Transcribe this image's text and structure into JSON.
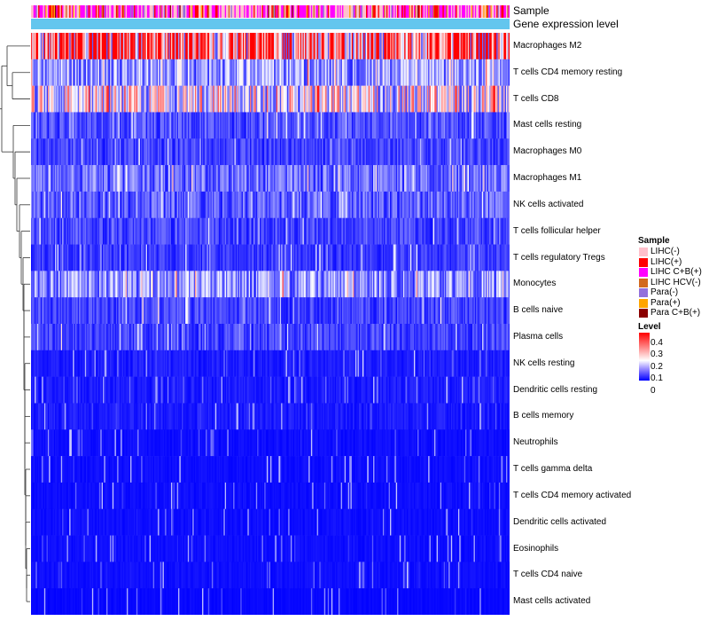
{
  "chart_data": {
    "type": "heatmap",
    "title": "",
    "annotation_tracks": [
      "Sample",
      "Gene expression level"
    ],
    "rows": [
      {
        "label": "Macrophages M2",
        "mean": 0.3
      },
      {
        "label": "T cells CD4 memory resting",
        "mean": 0.12
      },
      {
        "label": "T cells CD8",
        "mean": 0.19
      },
      {
        "label": "Mast cells resting",
        "mean": 0.06
      },
      {
        "label": "Macrophages M0",
        "mean": 0.05
      },
      {
        "label": "Macrophages M1",
        "mean": 0.08
      },
      {
        "label": "NK cells activated",
        "mean": 0.07
      },
      {
        "label": "T cells follicular helper",
        "mean": 0.05
      },
      {
        "label": "T cells regulatory  Tregs",
        "mean": 0.04
      },
      {
        "label": "Monocytes",
        "mean": 0.11
      },
      {
        "label": "B cells naive",
        "mean": 0.05
      },
      {
        "label": "Plasma cells",
        "mean": 0.05
      },
      {
        "label": "NK cells resting",
        "mean": 0.02
      },
      {
        "label": "Dendritic cells resting",
        "mean": 0.02
      },
      {
        "label": "B cells memory",
        "mean": 0.02
      },
      {
        "label": "Neutrophils",
        "mean": 0.01
      },
      {
        "label": "T cells gamma delta",
        "mean": 0.01
      },
      {
        "label": "T cells CD4 memory activated",
        "mean": 0.01
      },
      {
        "label": "Dendritic cells activated",
        "mean": 0.01
      },
      {
        "label": "Eosinophils",
        "mean": 0.01
      },
      {
        "label": "T cells CD4 naive",
        "mean": 0.01
      },
      {
        "label": "Mast cells activated",
        "mean": 0.005
      }
    ],
    "n_columns": 400,
    "sample_legend": {
      "title": "Sample",
      "items": [
        {
          "label": "LIHC(-)",
          "color": "#ffc0cb"
        },
        {
          "label": "LIHC(+)",
          "color": "#ff0000"
        },
        {
          "label": "LIHC C+B(+)",
          "color": "#ff00ff"
        },
        {
          "label": "LIHC HCV(-)",
          "color": "#d2691e"
        },
        {
          "label": "Para(-)",
          "color": "#9370db"
        },
        {
          "label": "Para(+)",
          "color": "#ffa500"
        },
        {
          "label": "Para C+B(+)",
          "color": "#8b0000"
        }
      ]
    },
    "level_legend": {
      "title": "Level",
      "range": [
        0,
        0.4
      ],
      "ticks": [
        "0.4",
        "0.3",
        "0.2",
        "0.1",
        "0"
      ],
      "tick_values": [
        0.4,
        0.3,
        0.2,
        0.1,
        0
      ],
      "low_color": "#0000ff",
      "mid_color": "#ffffff",
      "high_color": "#ff0000"
    },
    "sample_mix": [
      0.38,
      0.12,
      0.34,
      0.04,
      0.06,
      0.04,
      0.02
    ],
    "level_bar_color": "#63c6ee"
  }
}
